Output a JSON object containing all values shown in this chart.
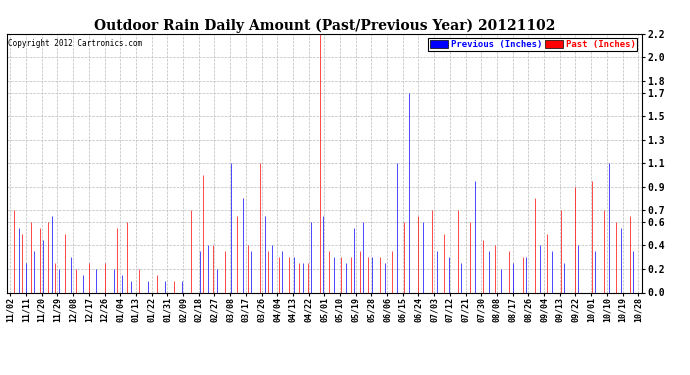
{
  "title": "Outdoor Rain Daily Amount (Past/Previous Year) 20121102",
  "copyright": "Copyright 2012 Cartronics.com",
  "legend_blue_label": "Previous (Inches)",
  "legend_red_label": "Past (Inches)",
  "yticks": [
    0.0,
    0.2,
    0.4,
    0.6,
    0.7,
    0.9,
    1.1,
    1.3,
    1.5,
    1.7,
    1.8,
    2.0,
    2.2
  ],
  "ymin": 0.0,
  "ymax": 2.2,
  "background_color": "#ffffff",
  "plot_bg_color": "#ffffff",
  "grid_color": "#bbbbbb",
  "blue_color": "#0000ff",
  "red_color": "#ff0000",
  "title_fontsize": 10,
  "xtick_labels": [
    "11/02",
    "11/11",
    "11/20",
    "11/29",
    "12/08",
    "12/17",
    "12/26",
    "01/04",
    "01/13",
    "01/22",
    "01/31",
    "02/09",
    "02/18",
    "02/27",
    "03/08",
    "03/17",
    "03/26",
    "04/04",
    "04/13",
    "04/22",
    "05/01",
    "05/10",
    "05/19",
    "05/28",
    "06/06",
    "06/15",
    "06/24",
    "07/03",
    "07/12",
    "07/21",
    "07/30",
    "08/08",
    "08/17",
    "08/26",
    "09/04",
    "09/13",
    "09/22",
    "10/01",
    "10/10",
    "10/19",
    "10/28"
  ],
  "n_points": 366,
  "blue_spikes": {
    "positions": [
      5,
      9,
      14,
      19,
      24,
      28,
      35,
      42,
      50,
      60,
      65,
      70,
      80,
      90,
      100,
      110,
      115,
      120,
      128,
      135,
      140,
      148,
      152,
      158,
      165,
      170,
      175,
      182,
      188,
      195,
      200,
      205,
      210,
      218,
      225,
      232,
      240,
      248,
      255,
      262,
      270,
      278,
      285,
      292,
      300,
      308,
      315,
      322,
      330,
      340,
      348,
      355,
      362
    ],
    "heights": [
      0.55,
      0.25,
      0.35,
      0.45,
      0.65,
      0.2,
      0.3,
      0.15,
      0.2,
      0.2,
      0.15,
      0.1,
      0.1,
      0.1,
      0.1,
      0.35,
      0.4,
      0.2,
      1.1,
      0.8,
      0.35,
      0.65,
      0.4,
      0.35,
      0.3,
      0.25,
      0.6,
      0.65,
      0.3,
      0.25,
      0.55,
      0.6,
      0.3,
      0.25,
      1.1,
      1.7,
      0.6,
      0.35,
      0.3,
      0.25,
      0.95,
      0.35,
      0.2,
      0.25,
      0.3,
      0.4,
      0.35,
      0.25,
      0.4,
      0.35,
      1.1,
      0.55,
      0.35
    ]
  },
  "red_spikes": {
    "positions": [
      2,
      7,
      12,
      17,
      22,
      26,
      32,
      38,
      46,
      55,
      62,
      68,
      75,
      85,
      95,
      105,
      112,
      118,
      125,
      132,
      138,
      145,
      150,
      156,
      162,
      168,
      173,
      180,
      185,
      192,
      198,
      203,
      208,
      215,
      222,
      229,
      237,
      245,
      252,
      260,
      267,
      275,
      282,
      290,
      298,
      305,
      312,
      320,
      328,
      338,
      345,
      352,
      360
    ],
    "heights": [
      0.7,
      0.5,
      0.6,
      0.55,
      0.6,
      0.25,
      0.5,
      0.2,
      0.25,
      0.25,
      0.55,
      0.6,
      0.2,
      0.15,
      0.1,
      0.7,
      1.0,
      0.4,
      0.35,
      0.65,
      0.4,
      1.1,
      0.35,
      0.3,
      0.3,
      0.25,
      0.25,
      2.2,
      0.35,
      0.3,
      0.3,
      0.35,
      0.3,
      0.3,
      0.35,
      0.6,
      0.65,
      0.7,
      0.5,
      0.7,
      0.6,
      0.45,
      0.4,
      0.35,
      0.3,
      0.8,
      0.5,
      0.7,
      0.9,
      0.95,
      0.7,
      0.6,
      0.65
    ]
  }
}
